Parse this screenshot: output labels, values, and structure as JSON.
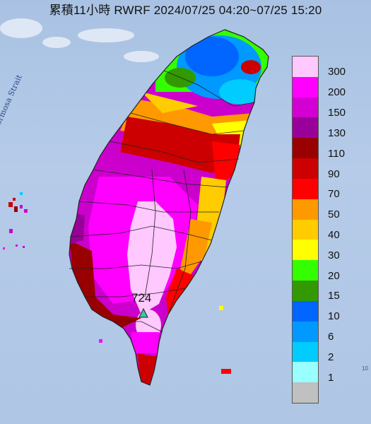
{
  "title": "累積11小時 RWRF 2024/07/25 04:20~07/25 15:20",
  "strait_label": "Formosa Strait",
  "peak_value": "724",
  "edge_label": "10",
  "legend": [
    {
      "label": "300",
      "color": "#ffc8ff"
    },
    {
      "label": "200",
      "color": "#ff00ff"
    },
    {
      "label": "150",
      "color": "#d200d2"
    },
    {
      "label": "130",
      "color": "#990099"
    },
    {
      "label": "110",
      "color": "#990000"
    },
    {
      "label": "90",
      "color": "#cc0000"
    },
    {
      "label": "70",
      "color": "#ff0000"
    },
    {
      "label": "50",
      "color": "#ff9900"
    },
    {
      "label": "40",
      "color": "#ffcc00"
    },
    {
      "label": "30",
      "color": "#ffff00"
    },
    {
      "label": "20",
      "color": "#33ff00"
    },
    {
      "label": "15",
      "color": "#339900"
    },
    {
      "label": "10",
      "color": "#0066ff"
    },
    {
      "label": "6",
      "color": "#0099ff"
    },
    {
      "label": "2",
      "color": "#00ccff"
    },
    {
      "label": "1",
      "color": "#99ffff"
    },
    {
      "label": "",
      "color": "#c0c0c0"
    }
  ],
  "legend_values": [
    "300",
    "200",
    "150",
    "130",
    "110",
    "90",
    "70",
    "50",
    "40",
    "30",
    "20",
    "15",
    "10",
    "6",
    "2",
    "1"
  ]
}
